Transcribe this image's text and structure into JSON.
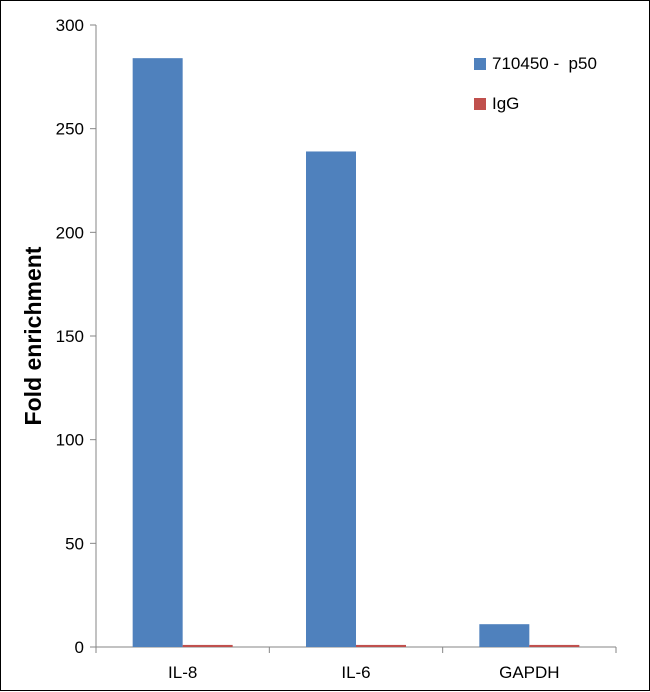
{
  "chart_data": {
    "type": "bar",
    "title": "",
    "xlabel": "",
    "ylabel": "Fold enrichment",
    "categories": [
      "IL-8",
      "IL-6",
      "GAPDH"
    ],
    "series": [
      {
        "name": "710450 -  p50",
        "color": "#4f81bd",
        "values": [
          284,
          239,
          11
        ]
      },
      {
        "name": "IgG",
        "color": "#c0504d",
        "values": [
          1,
          1,
          1
        ]
      }
    ],
    "ylim": [
      0,
      300
    ],
    "yticks": [
      0,
      50,
      100,
      150,
      200,
      250,
      300
    ],
    "grid": false,
    "legend_position": "top-right"
  }
}
